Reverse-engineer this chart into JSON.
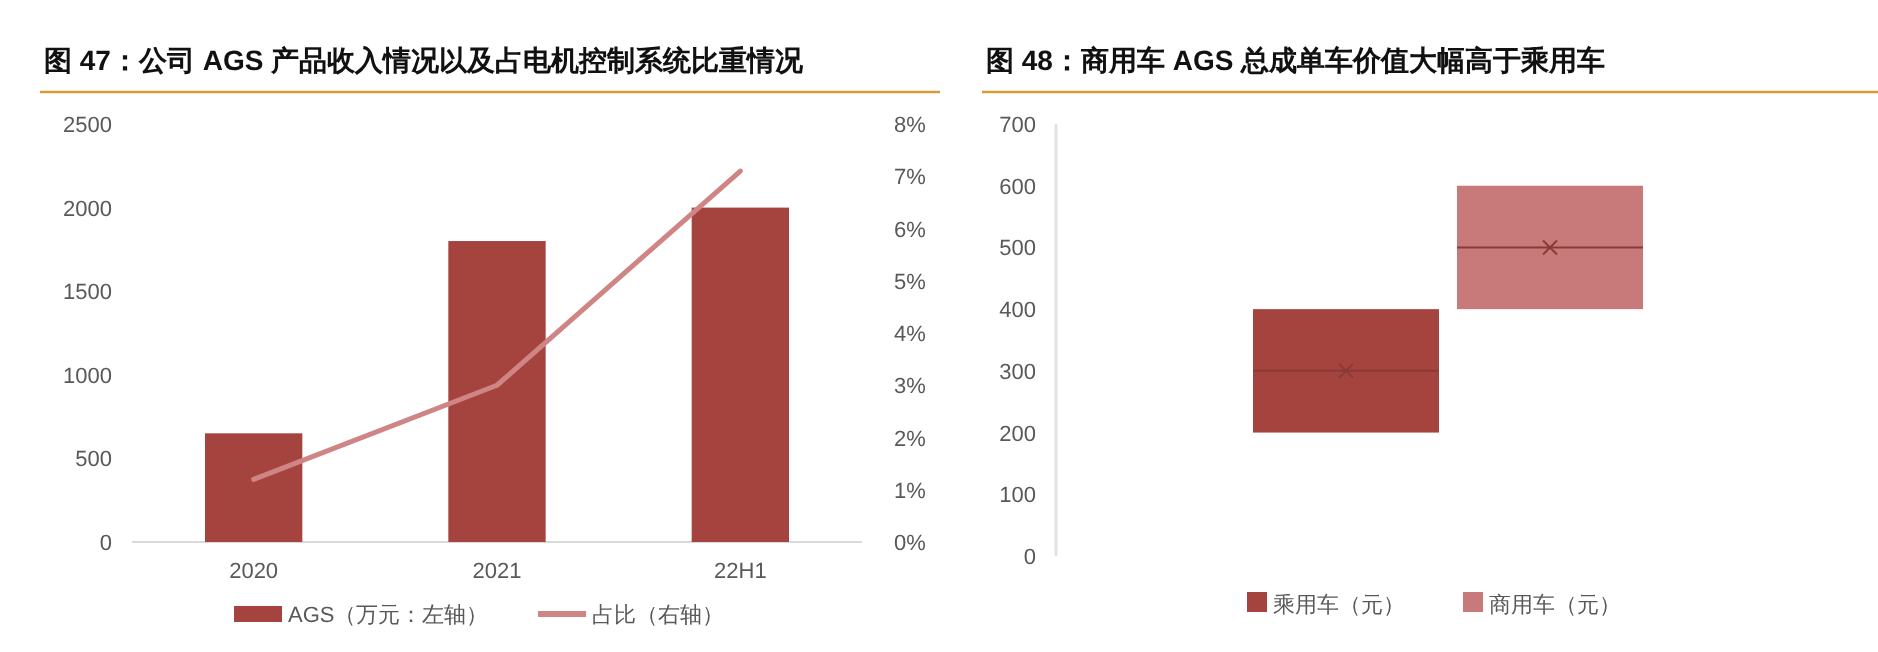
{
  "chart_data": [
    {
      "type": "bar",
      "title": "图 47：公司 AGS 产品收入情况以及占电机控制系统比重情况",
      "categories": [
        "2020",
        "2021",
        "22H1"
      ],
      "series": [
        {
          "name": "AGS（万元：左轴）",
          "color": "#a5433f",
          "values": [
            650,
            1800,
            2000
          ]
        },
        {
          "name": "占比（右轴）",
          "color": "#d08585",
          "type": "line",
          "axis": "y2",
          "values": [
            1.2,
            3.0,
            7.1
          ]
        }
      ],
      "ylim": [
        0,
        2500
      ],
      "yticks": [
        0,
        500,
        1000,
        1500,
        2000,
        2500
      ],
      "y2lim": [
        0,
        8
      ],
      "y2ticks": [
        {
          "value": 0,
          "label": "0%"
        },
        {
          "value": 1,
          "label": "1%"
        },
        {
          "value": 2,
          "label": "2%"
        },
        {
          "value": 3,
          "label": "3%"
        },
        {
          "value": 4,
          "label": "4%"
        },
        {
          "value": 5,
          "label": "5%"
        },
        {
          "value": 6,
          "label": "6%"
        },
        {
          "value": 7,
          "label": "7%"
        },
        {
          "value": 8,
          "label": "8%"
        }
      ],
      "legend": "bottom"
    },
    {
      "type": "box",
      "title": "图 48：商用车 AGS 总成单车价值大幅高于乘用车",
      "categories": [
        "乘用车（元）",
        "商用车（元）"
      ],
      "colors": [
        "#a5433f",
        "#c87a7a"
      ],
      "boxes": [
        {
          "low": 200,
          "q1": 200,
          "median": 300,
          "q3": 400,
          "high": 400,
          "mean": 300
        },
        {
          "low": 400,
          "q1": 400,
          "median": 500,
          "q3": 600,
          "high": 600,
          "mean": 500
        }
      ],
      "ylim": [
        0,
        700
      ],
      "yticks": [
        0,
        100,
        200,
        300,
        400,
        500,
        600,
        700
      ]
    }
  ]
}
